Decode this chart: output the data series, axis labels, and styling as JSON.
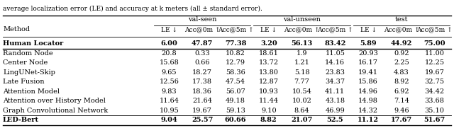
{
  "caption": "average localization error (LE) and accuracy at k meters (all ± standard error).",
  "group_labels": [
    "val-seen",
    "val-unseen",
    "test"
  ],
  "sub_cols": [
    "LE ↓",
    "Acc@0m ↑",
    "Acc@5m ↑"
  ],
  "rows": [
    {
      "method": "Human Locator",
      "vals": [
        "6.00",
        "47.87",
        "77.38",
        "3.20",
        "56.13",
        "83.42",
        "5.89",
        "44.92",
        "75.00"
      ],
      "bold": true,
      "sep_after": true,
      "thick_sep": true
    },
    {
      "method": "Random Node",
      "vals": [
        "20.8",
        "0.33",
        "10.82",
        "18.61",
        "1.9",
        "11.05",
        "20.93",
        "0.92",
        "11.00"
      ],
      "bold": false,
      "sep_after": false,
      "thick_sep": false
    },
    {
      "method": "Center Node",
      "vals": [
        "15.68",
        "0.66",
        "12.79",
        "13.72",
        "1.21",
        "14.16",
        "16.17",
        "2.25",
        "12.25"
      ],
      "bold": false,
      "sep_after": false,
      "thick_sep": false
    },
    {
      "method": "LingUNet-Skip",
      "vals": [
        "9.65",
        "18.27",
        "58.36",
        "13.80",
        "5.18",
        "23.83",
        "19.41",
        "4.83",
        "19.67"
      ],
      "bold": false,
      "sep_after": false,
      "thick_sep": false
    },
    {
      "method": "Late Fusion",
      "vals": [
        "12.56",
        "17.38",
        "47.54",
        "12.87",
        "7.77",
        "34.37",
        "15.86",
        "8.92",
        "32.75"
      ],
      "bold": false,
      "sep_after": false,
      "thick_sep": false
    },
    {
      "method": "Attention Model",
      "vals": [
        "9.83",
        "18.36",
        "56.07",
        "10.93",
        "10.54",
        "41.11",
        "14.96",
        "6.92",
        "34.42"
      ],
      "bold": false,
      "sep_after": false,
      "thick_sep": false
    },
    {
      "method": "Attention over History Model",
      "vals": [
        "11.64",
        "21.64",
        "49.18",
        "11.44",
        "10.02",
        "43.18",
        "14.98",
        "7.14",
        "33.68"
      ],
      "bold": false,
      "sep_after": false,
      "thick_sep": false
    },
    {
      "method": "Graph Convolutional Network",
      "vals": [
        "10.95",
        "19.67",
        "59.13",
        "9.10",
        "8.64",
        "46.99",
        "14.32",
        "9.46",
        "35.10"
      ],
      "bold": false,
      "sep_after": true,
      "thick_sep": false
    },
    {
      "method": "LED-Bert",
      "vals": [
        "9.04",
        "25.57",
        "60.66",
        "8.82",
        "21.07",
        "52.5",
        "11.12",
        "17.67",
        "51.67"
      ],
      "bold": true,
      "sep_after": false,
      "thick_sep": false
    }
  ],
  "font_size": 7.0,
  "figsize": [
    6.4,
    1.88
  ],
  "dpi": 100
}
